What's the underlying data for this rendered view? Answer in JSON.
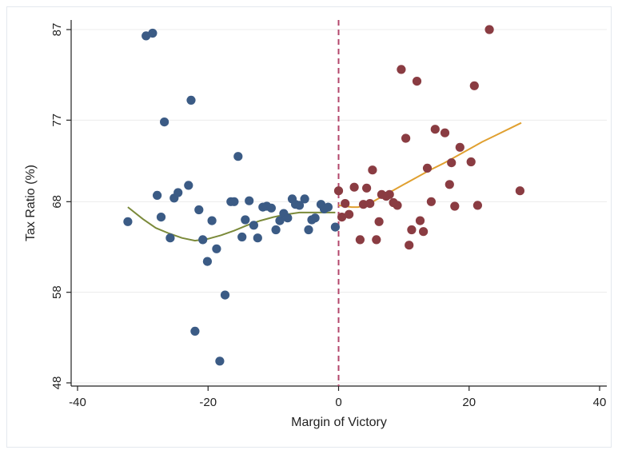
{
  "chart_data": {
    "type": "scatter",
    "title": "",
    "xlabel": "Margin of Victory",
    "ylabel": "Tax Ratio (%)",
    "xlim": [
      -40,
      40
    ],
    "ylim": [
      48,
      87
    ],
    "xticks": [
      -40,
      -20,
      0,
      20,
      40
    ],
    "yticks": [
      48,
      58,
      68,
      77,
      87
    ],
    "xtick_labels": [
      "-40",
      "-20",
      "0",
      "20",
      "40"
    ],
    "ytick_labels": [
      "48",
      "58",
      "68",
      "77",
      "87"
    ],
    "grid": true,
    "legend": "none",
    "cutoff": 0,
    "colors": {
      "left_points": "#3b5b85",
      "right_points": "#8a3c42",
      "left_fit": "#7b8a3a",
      "right_fit": "#e0a030",
      "cutoff_line": "#b3466b",
      "grid": "#ececec",
      "axis": "#222222"
    },
    "series": [
      {
        "points": [
          [
            -32.3,
            65.8
          ],
          [
            -29.5,
            86.3
          ],
          [
            -28.5,
            86.6
          ],
          [
            -27.8,
            68.7
          ],
          [
            -27.2,
            66.3
          ],
          [
            -26.7,
            76.8
          ],
          [
            -25.8,
            64.0
          ],
          [
            -25.2,
            68.4
          ],
          [
            -24.6,
            69.0
          ],
          [
            -23.0,
            69.8
          ],
          [
            -22.6,
            79.2
          ],
          [
            -22.0,
            53.7
          ],
          [
            -21.4,
            67.1
          ],
          [
            -20.8,
            63.8
          ],
          [
            -20.1,
            61.4
          ],
          [
            -19.4,
            65.9
          ],
          [
            -18.7,
            62.8
          ],
          [
            -18.2,
            50.4
          ],
          [
            -17.4,
            57.7
          ],
          [
            -16.5,
            68.0
          ],
          [
            -16.0,
            68.0
          ],
          [
            -15.4,
            73.0
          ],
          [
            -14.8,
            64.1
          ],
          [
            -14.3,
            66.0
          ],
          [
            -13.7,
            68.1
          ],
          [
            -13.0,
            65.4
          ],
          [
            -12.4,
            64.0
          ],
          [
            -11.6,
            67.4
          ],
          [
            -11.0,
            67.5
          ],
          [
            -10.3,
            67.3
          ],
          [
            -9.6,
            64.9
          ],
          [
            -9.0,
            65.9
          ],
          [
            -8.4,
            66.7
          ],
          [
            -7.8,
            66.2
          ],
          [
            -7.1,
            68.3
          ],
          [
            -6.6,
            67.7
          ],
          [
            -6.0,
            67.6
          ],
          [
            -5.2,
            68.3
          ],
          [
            -4.6,
            64.9
          ],
          [
            -4.1,
            66.0
          ],
          [
            -3.6,
            66.2
          ],
          [
            -2.7,
            67.7
          ],
          [
            -2.2,
            67.2
          ],
          [
            -1.6,
            67.4
          ],
          [
            -0.5,
            65.2
          ]
        ]
      },
      {
        "points": [
          [
            0.0,
            69.2
          ],
          [
            0.5,
            66.3
          ],
          [
            1.0,
            67.8
          ],
          [
            1.6,
            66.6
          ],
          [
            2.4,
            69.6
          ],
          [
            3.3,
            63.8
          ],
          [
            3.8,
            67.7
          ],
          [
            4.3,
            69.5
          ],
          [
            4.8,
            67.8
          ],
          [
            5.2,
            71.5
          ],
          [
            5.8,
            63.8
          ],
          [
            6.2,
            65.8
          ],
          [
            6.6,
            68.8
          ],
          [
            7.3,
            68.6
          ],
          [
            7.8,
            68.8
          ],
          [
            8.4,
            67.9
          ],
          [
            9.0,
            67.6
          ],
          [
            9.6,
            82.6
          ],
          [
            10.3,
            75.0
          ],
          [
            10.8,
            63.2
          ],
          [
            11.2,
            64.9
          ],
          [
            12.0,
            81.3
          ],
          [
            12.5,
            65.9
          ],
          [
            13.0,
            64.7
          ],
          [
            13.6,
            71.7
          ],
          [
            14.2,
            68.0
          ],
          [
            14.8,
            76.0
          ],
          [
            16.3,
            75.6
          ],
          [
            17.0,
            69.9
          ],
          [
            17.3,
            72.3
          ],
          [
            17.8,
            67.5
          ],
          [
            18.6,
            74.0
          ],
          [
            20.3,
            72.4
          ],
          [
            20.8,
            80.8
          ],
          [
            21.3,
            67.6
          ],
          [
            23.1,
            87.0
          ],
          [
            27.8,
            69.2
          ]
        ]
      }
    ],
    "fit_lines": [
      {
        "points": [
          [
            -32.3,
            67.4
          ],
          [
            -30,
            66.1
          ],
          [
            -28,
            65.1
          ],
          [
            -26,
            64.5
          ],
          [
            -24,
            64.0
          ],
          [
            -22,
            63.7
          ],
          [
            -20,
            63.9
          ],
          [
            -18,
            64.3
          ],
          [
            -16,
            64.8
          ],
          [
            -14,
            65.4
          ],
          [
            -12,
            65.9
          ],
          [
            -10,
            66.3
          ],
          [
            -8,
            66.6
          ],
          [
            -6,
            66.8
          ],
          [
            -4,
            66.8
          ],
          [
            -2,
            66.8
          ],
          [
            -0.5,
            66.8
          ]
        ]
      },
      {
        "points": [
          [
            0,
            67.6
          ],
          [
            1,
            67.5
          ],
          [
            2,
            67.4
          ],
          [
            3,
            67.4
          ],
          [
            4,
            67.6
          ],
          [
            5,
            67.9
          ],
          [
            6,
            68.3
          ],
          [
            7,
            68.7
          ],
          [
            8,
            69.1
          ],
          [
            10,
            69.9
          ],
          [
            12,
            70.7
          ],
          [
            14,
            71.5
          ],
          [
            16,
            72.2
          ],
          [
            18,
            73.0
          ],
          [
            20,
            73.8
          ],
          [
            22,
            74.6
          ],
          [
            24,
            75.3
          ],
          [
            26,
            76.0
          ],
          [
            28.0,
            76.7
          ]
        ]
      }
    ]
  }
}
